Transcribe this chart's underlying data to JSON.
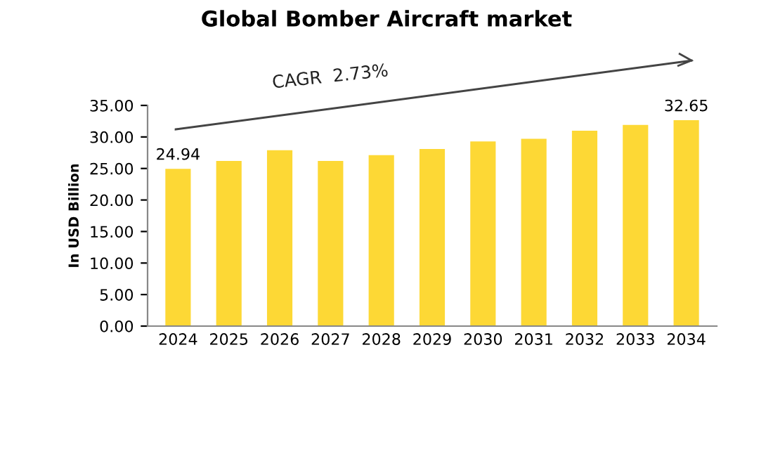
{
  "chart_data": {
    "type": "bar",
    "title": "Global Bomber Aircraft market",
    "ylabel": "In USD Billion",
    "categories": [
      "2024",
      "2025",
      "2026",
      "2027",
      "2028",
      "2029",
      "2030",
      "2031",
      "2032",
      "2033",
      "2034"
    ],
    "values": [
      24.94,
      26.2,
      27.9,
      26.2,
      27.1,
      28.1,
      29.3,
      29.7,
      31.0,
      31.9,
      32.65
    ],
    "value_labels": [
      "24.94",
      null,
      null,
      null,
      null,
      null,
      null,
      null,
      null,
      null,
      "32.65"
    ],
    "color": "#fdd835",
    "ylim": [
      0,
      35
    ],
    "yticks": [
      {
        "value": 0,
        "label": "0.00"
      },
      {
        "value": 5,
        "label": "5.00"
      },
      {
        "value": 10,
        "label": "10.00"
      },
      {
        "value": 15,
        "label": "15.00"
      },
      {
        "value": 20,
        "label": "20.00"
      },
      {
        "value": 25,
        "label": "25.00"
      },
      {
        "value": 30,
        "label": "30.00"
      },
      {
        "value": 35,
        "label": "35.00"
      }
    ],
    "annotations": [
      "CAGR  2.73%"
    ],
    "grid": false,
    "legend": false
  }
}
